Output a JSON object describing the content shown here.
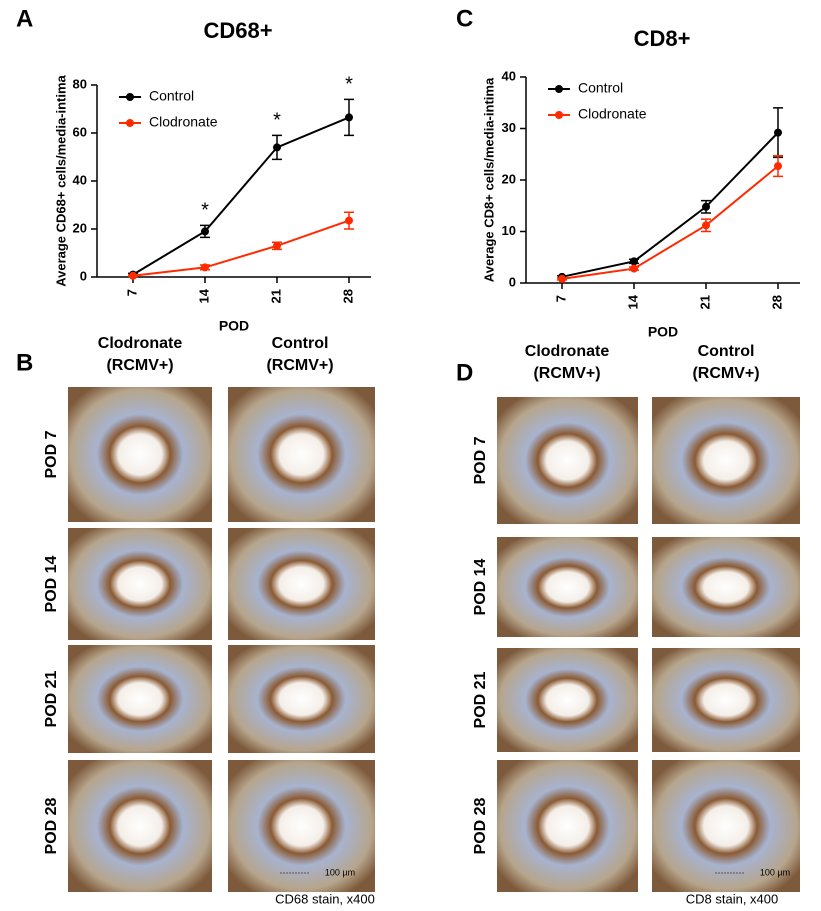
{
  "chart_data": [
    {
      "type": "line",
      "title": "CD68+",
      "x_label": "POD",
      "y_label": "Average CD68+ cells/media-intima",
      "categories": [
        "7",
        "14",
        "21",
        "28"
      ],
      "ylim": [
        0,
        80
      ],
      "yticks": [
        0,
        20,
        40,
        60,
        80
      ],
      "legend": "top-left",
      "series": [
        {
          "name": "Control",
          "color": "#000000",
          "values": [
            1,
            19,
            54,
            66.5
          ],
          "errors": [
            0.5,
            2.5,
            5,
            7.5
          ]
        },
        {
          "name": "Clodronate",
          "color": "#ff2a00",
          "values": [
            0.5,
            4,
            13,
            23.5
          ],
          "errors": [
            0.3,
            1,
            1.5,
            3.5
          ]
        }
      ],
      "annotations": [
        {
          "text": "*",
          "x": "14"
        },
        {
          "text": "*",
          "x": "21"
        },
        {
          "text": "*",
          "x": "28"
        }
      ]
    },
    {
      "type": "line",
      "title": "CD8+",
      "x_label": "POD",
      "y_label": "Average CD8+ cells/media-intima",
      "categories": [
        "7",
        "14",
        "21",
        "28"
      ],
      "ylim": [
        0,
        40
      ],
      "yticks": [
        0,
        10,
        20,
        30,
        40
      ],
      "legend": "top-left",
      "series": [
        {
          "name": "Control",
          "color": "#000000",
          "values": [
            1.2,
            4.2,
            14.8,
            29.2
          ],
          "errors": [
            0.2,
            0.4,
            1.2,
            4.8
          ]
        },
        {
          "name": "Clodronate",
          "color": "#ff2a00",
          "values": [
            0.8,
            2.8,
            11.2,
            22.7
          ],
          "errors": [
            0.2,
            0.3,
            1.2,
            2
          ]
        }
      ]
    }
  ],
  "panel_labels": [
    "A",
    "C",
    "B",
    "D"
  ],
  "image_panels": [
    {
      "columns": [
        [
          "Clodronate",
          "(RCMV+)"
        ],
        [
          "Control",
          "(RCMV+)"
        ]
      ],
      "rows": [
        "POD 7",
        "POD 14",
        "POD 21",
        "POD 28"
      ],
      "scale": "100 µm",
      "stain": "CD68 stain,  x400"
    },
    {
      "columns": [
        [
          "Clodronate",
          "(RCMV+)"
        ],
        [
          "Control",
          "(RCMV+)"
        ]
      ],
      "rows": [
        "POD 7",
        "POD 14",
        "POD 21",
        "POD 28"
      ],
      "scale": "100 µm",
      "stain": "CD8 stain,  x400"
    }
  ]
}
